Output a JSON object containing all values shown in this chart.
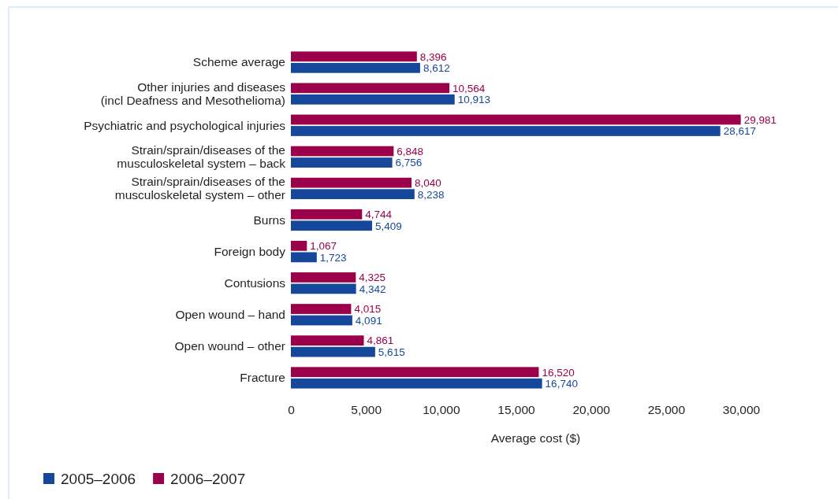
{
  "chart_data": {
    "type": "bar",
    "orientation": "horizontal",
    "categories": [
      "Scheme average",
      "Other injuries and diseases\n(incl Deafness and Mesothelioma)",
      "Psychiatric and psychological injuries",
      "Strain/sprain/diseases of the\nmusculoskeletal system – back",
      "Strain/sprain/diseases of the\nmusculoskeletal system – other",
      "Burns",
      "Foreign body",
      "Contusions",
      "Open wound – hand",
      "Open wound – other",
      "Fracture"
    ],
    "series": [
      {
        "name": "2005–2006",
        "color": "#15479a",
        "values": [
          8612,
          10913,
          28617,
          6756,
          8238,
          5409,
          1723,
          4342,
          4091,
          5615,
          16740
        ],
        "value_labels": [
          "8,612",
          "10,913",
          "28,617",
          "6,756",
          "8,238",
          "5,409",
          "1,723",
          "4,342",
          "4,091",
          "5,615",
          "16,740"
        ]
      },
      {
        "name": "2006–2007",
        "color": "#9b004b",
        "values": [
          8396,
          10564,
          29981,
          6848,
          8040,
          4744,
          1067,
          4325,
          4015,
          4861,
          16520
        ],
        "value_labels": [
          "8,396",
          "10,564",
          "29,981",
          "6,848",
          "8,040",
          "4,744",
          "1,067",
          "4,325",
          "4,015",
          "4,861",
          "16,520"
        ]
      }
    ],
    "xlabel": "Average cost ($)",
    "xlim": [
      0,
      30000
    ],
    "xticks": [
      0,
      {
        "value": 5000,
        "label": "5,000"
      },
      {
        "value": 10000,
        "label": "10,000"
      },
      {
        "value": 15000,
        "label": "15,000"
      },
      {
        "value": 20000,
        "label": "20,000"
      },
      {
        "value": 25000,
        "label": "25,000"
      },
      {
        "value": 30000,
        "label": "30,000"
      }
    ],
    "legend": "bottom left"
  }
}
